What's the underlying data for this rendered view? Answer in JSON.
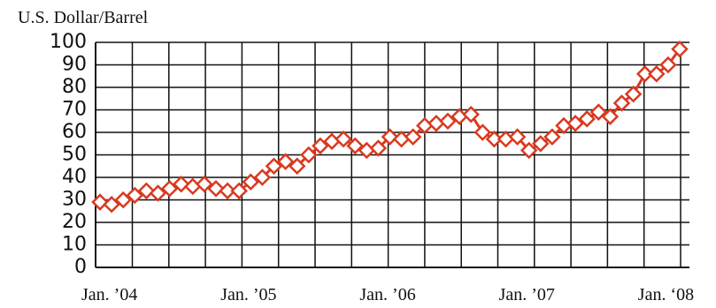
{
  "chart_data": {
    "type": "line",
    "ylabel": "U.S. Dollar/Barrel",
    "categories": [
      "Jan. ’04",
      null,
      null,
      null,
      null,
      null,
      null,
      null,
      null,
      null,
      null,
      null,
      "Jan. ’05",
      null,
      null,
      null,
      null,
      null,
      null,
      null,
      null,
      null,
      null,
      null,
      "Jan. ’06",
      null,
      null,
      null,
      null,
      null,
      null,
      null,
      null,
      null,
      null,
      null,
      "Jan. ’07",
      null,
      null,
      null,
      null,
      null,
      null,
      null,
      null,
      null,
      null,
      null,
      "Jan. ‘08",
      null,
      null
    ],
    "values": [
      29,
      28,
      30,
      32,
      34,
      33,
      35,
      37,
      36,
      37,
      35,
      34,
      34,
      38,
      40,
      45,
      47,
      45,
      50,
      54,
      56,
      57,
      54,
      52,
      53,
      58,
      57,
      58,
      63,
      64,
      65,
      67,
      68,
      60,
      57,
      57,
      58,
      52,
      55,
      58,
      63,
      64,
      66,
      69,
      67,
      73,
      77,
      86,
      86,
      90,
      97
    ],
    "color": "#d9391f",
    "ylim": [
      0,
      100
    ],
    "yticks": [
      0,
      10,
      20,
      30,
      40,
      50,
      60,
      70,
      80,
      90,
      100
    ],
    "grid": true
  }
}
